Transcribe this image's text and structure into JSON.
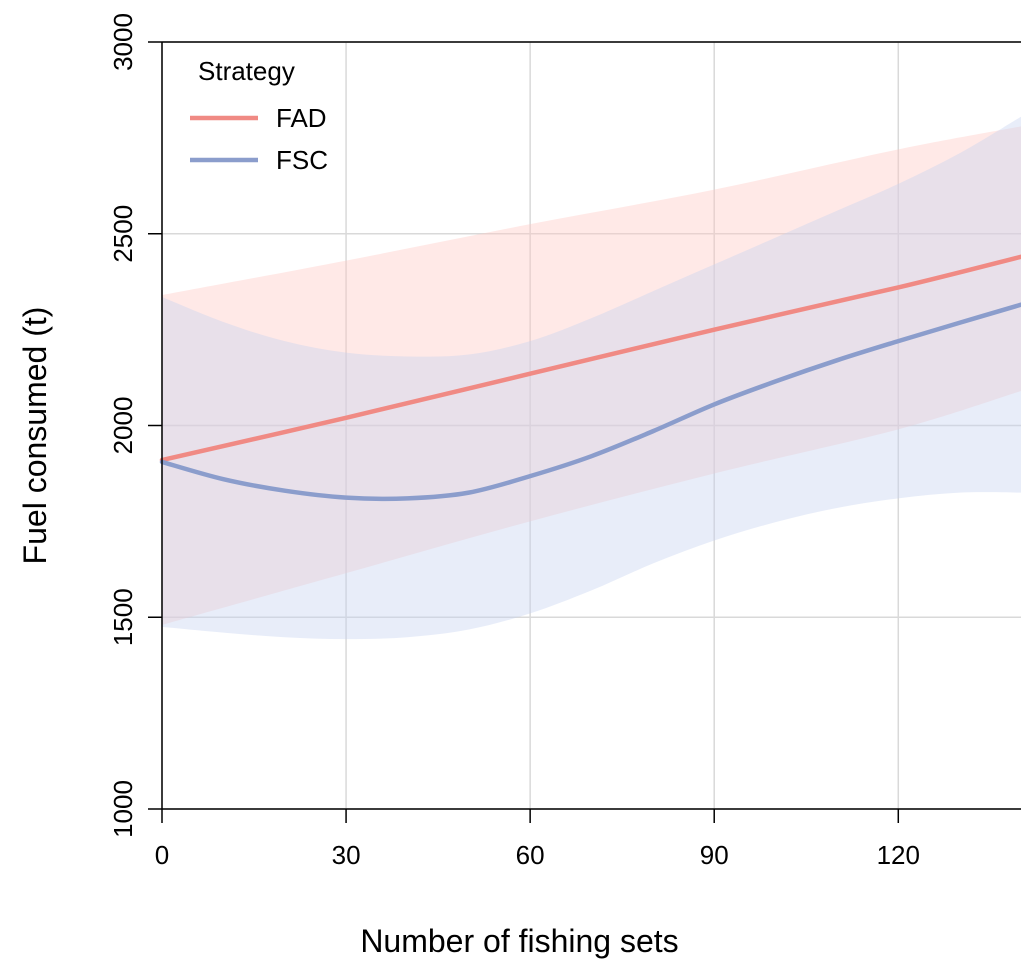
{
  "chart_data": {
    "type": "line",
    "title": "",
    "xlabel": "Number of fishing sets",
    "ylabel": "Fuel consumed (t)",
    "xlim": [
      0,
      140
    ],
    "ylim": [
      1000,
      3000
    ],
    "x_ticks": [
      0,
      30,
      60,
      90,
      120
    ],
    "y_ticks": [
      1000,
      1500,
      2000,
      2500,
      3000
    ],
    "grid": true,
    "legend": {
      "title": "Strategy",
      "position": "top-left"
    },
    "series": [
      {
        "name": "FAD",
        "color": "#f08a84",
        "band_color": "#ffc9c2",
        "x": [
          0,
          30,
          60,
          90,
          120,
          140
        ],
        "y": [
          1910,
          2020,
          2135,
          2250,
          2360,
          2440
        ],
        "lower": [
          1480,
          1615,
          1750,
          1875,
          1990,
          2090
        ],
        "upper": [
          2340,
          2430,
          2525,
          2615,
          2720,
          2780
        ]
      },
      {
        "name": "FSC",
        "color": "#8b9dcc",
        "band_color": "#c6d1f0",
        "x": [
          0,
          10,
          20,
          30,
          40,
          50,
          60,
          70,
          80,
          90,
          100,
          110,
          120,
          130,
          140
        ],
        "y": [
          1905,
          1860,
          1830,
          1812,
          1810,
          1825,
          1868,
          1920,
          1985,
          2055,
          2115,
          2170,
          2220,
          2268,
          2315
        ],
        "lower": [
          1475,
          1460,
          1448,
          1443,
          1448,
          1468,
          1510,
          1570,
          1640,
          1700,
          1748,
          1785,
          1810,
          1825,
          1825
        ],
        "upper": [
          2335,
          2270,
          2220,
          2190,
          2180,
          2185,
          2220,
          2280,
          2350,
          2420,
          2490,
          2560,
          2630,
          2710,
          2805
        ]
      }
    ]
  }
}
